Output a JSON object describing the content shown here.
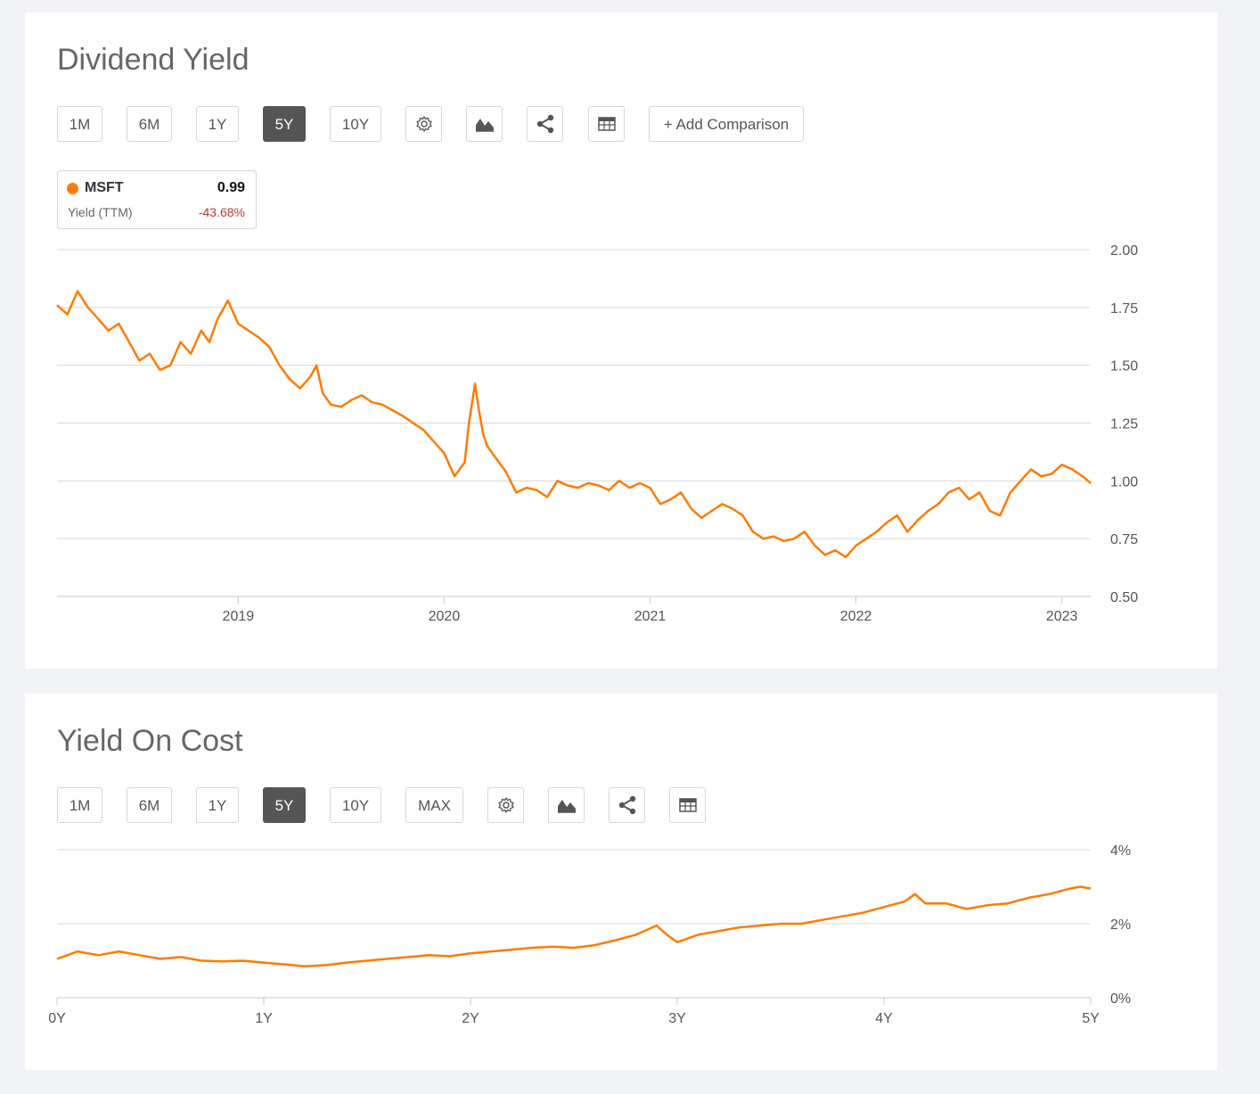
{
  "chart_data": [
    {
      "type": "line",
      "title": "Dividend Yield",
      "ylim": [
        0.5,
        2.0
      ],
      "y_ticks": [
        "2.00",
        "1.75",
        "1.50",
        "1.25",
        "1.00",
        "0.75",
        "0.50"
      ],
      "x_ticks": [
        "2019",
        "2020",
        "2021",
        "2022",
        "2023"
      ],
      "x_range": [
        2018.12,
        2023.14
      ],
      "grid": true,
      "series": [
        {
          "name": "MSFT",
          "color": "#ff7b00",
          "x": [
            2018.12,
            2018.17,
            2018.22,
            2018.27,
            2018.32,
            2018.37,
            2018.42,
            2018.47,
            2018.52,
            2018.57,
            2018.62,
            2018.67,
            2018.72,
            2018.77,
            2018.82,
            2018.86,
            2018.9,
            2018.95,
            2019.0,
            2019.05,
            2019.1,
            2019.15,
            2019.2,
            2019.25,
            2019.3,
            2019.35,
            2019.38,
            2019.41,
            2019.45,
            2019.5,
            2019.55,
            2019.6,
            2019.65,
            2019.7,
            2019.8,
            2019.9,
            2020.0,
            2020.05,
            2020.1,
            2020.12,
            2020.15,
            2020.17,
            2020.19,
            2020.21,
            2020.25,
            2020.3,
            2020.35,
            2020.4,
            2020.45,
            2020.5,
            2020.55,
            2020.6,
            2020.65,
            2020.7,
            2020.75,
            2020.8,
            2020.85,
            2020.9,
            2020.95,
            2021.0,
            2021.05,
            2021.1,
            2021.15,
            2021.2,
            2021.25,
            2021.3,
            2021.35,
            2021.4,
            2021.45,
            2021.5,
            2021.55,
            2021.6,
            2021.65,
            2021.7,
            2021.75,
            2021.8,
            2021.85,
            2021.9,
            2021.95,
            2022.0,
            2022.05,
            2022.1,
            2022.15,
            2022.2,
            2022.25,
            2022.3,
            2022.35,
            2022.4,
            2022.45,
            2022.5,
            2022.55,
            2022.6,
            2022.65,
            2022.7,
            2022.75,
            2022.8,
            2022.85,
            2022.9,
            2022.95,
            2023.0,
            2023.05,
            2023.1,
            2023.14
          ],
          "y": [
            1.76,
            1.72,
            1.82,
            1.75,
            1.7,
            1.65,
            1.68,
            1.6,
            1.52,
            1.55,
            1.48,
            1.5,
            1.6,
            1.55,
            1.65,
            1.6,
            1.7,
            1.78,
            1.68,
            1.65,
            1.62,
            1.58,
            1.5,
            1.44,
            1.4,
            1.45,
            1.5,
            1.38,
            1.33,
            1.32,
            1.35,
            1.37,
            1.34,
            1.33,
            1.28,
            1.22,
            1.12,
            1.02,
            1.08,
            1.25,
            1.42,
            1.3,
            1.2,
            1.15,
            1.1,
            1.04,
            0.95,
            0.97,
            0.96,
            0.93,
            1.0,
            0.98,
            0.97,
            0.99,
            0.98,
            0.96,
            1.0,
            0.97,
            0.99,
            0.97,
            0.9,
            0.92,
            0.95,
            0.88,
            0.84,
            0.87,
            0.9,
            0.88,
            0.85,
            0.78,
            0.75,
            0.76,
            0.74,
            0.75,
            0.78,
            0.72,
            0.68,
            0.7,
            0.67,
            0.72,
            0.75,
            0.78,
            0.82,
            0.85,
            0.78,
            0.83,
            0.87,
            0.9,
            0.95,
            0.97,
            0.92,
            0.95,
            0.87,
            0.85,
            0.95,
            1.0,
            1.05,
            1.02,
            1.03,
            1.07,
            1.05,
            1.02,
            0.99
          ]
        }
      ],
      "legend": {
        "symbol": "MSFT",
        "value": "0.99",
        "metric": "Yield (TTM)",
        "change": "-43.68%"
      }
    },
    {
      "type": "line",
      "title": "Yield On Cost",
      "ylim": [
        0,
        4
      ],
      "y_ticks": [
        "4%",
        "2%",
        "0%"
      ],
      "x_ticks": [
        "0Y",
        "1Y",
        "2Y",
        "3Y",
        "4Y",
        "5Y"
      ],
      "x_range": [
        0,
        5
      ],
      "grid": true,
      "series": [
        {
          "color": "#ff7b00",
          "x": [
            0,
            0.1,
            0.2,
            0.3,
            0.4,
            0.5,
            0.6,
            0.7,
            0.8,
            0.9,
            1.0,
            1.1,
            1.2,
            1.3,
            1.4,
            1.5,
            1.6,
            1.7,
            1.8,
            1.9,
            2.0,
            2.1,
            2.2,
            2.3,
            2.4,
            2.5,
            2.6,
            2.7,
            2.8,
            2.9,
            2.95,
            3.0,
            3.1,
            3.2,
            3.3,
            3.4,
            3.5,
            3.6,
            3.7,
            3.8,
            3.9,
            4.0,
            4.1,
            4.15,
            4.2,
            4.3,
            4.4,
            4.5,
            4.6,
            4.7,
            4.8,
            4.9,
            4.95,
            5.0
          ],
          "y": [
            1.05,
            1.25,
            1.15,
            1.25,
            1.15,
            1.05,
            1.1,
            1.0,
            0.98,
            1.0,
            0.95,
            0.9,
            0.85,
            0.88,
            0.95,
            1.0,
            1.05,
            1.1,
            1.15,
            1.12,
            1.2,
            1.25,
            1.3,
            1.35,
            1.38,
            1.35,
            1.42,
            1.55,
            1.7,
            1.95,
            1.7,
            1.5,
            1.7,
            1.8,
            1.9,
            1.95,
            2.0,
            2.0,
            2.1,
            2.2,
            2.3,
            2.45,
            2.6,
            2.8,
            2.55,
            2.55,
            2.4,
            2.5,
            2.55,
            2.7,
            2.8,
            2.95,
            3.0,
            2.95
          ]
        }
      ]
    }
  ],
  "card1": {
    "ranges": [
      "1M",
      "6M",
      "1Y",
      "5Y",
      "10Y"
    ],
    "active": "5Y",
    "add_comparison": "+ Add Comparison",
    "icons": [
      "settings-icon",
      "chart-type-icon",
      "share-icon",
      "table-icon"
    ]
  },
  "card2": {
    "ranges": [
      "1M",
      "6M",
      "1Y",
      "5Y",
      "10Y",
      "MAX"
    ],
    "active": "5Y",
    "icons": [
      "settings-icon",
      "chart-type-icon",
      "share-icon",
      "table-icon"
    ]
  }
}
